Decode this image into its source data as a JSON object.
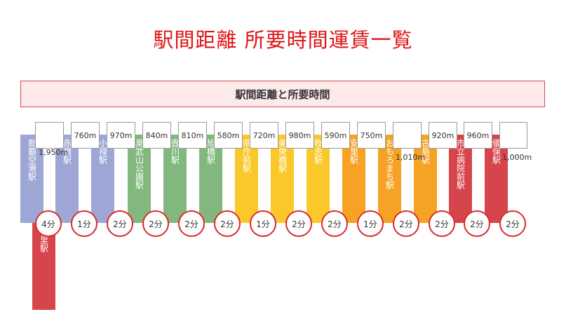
{
  "title": "駅間距離 所要時間運賃一覧",
  "section_header": "駅間距離と所要時間",
  "colors": {
    "title": "#e01616",
    "blue": "#9ea6d6",
    "green": "#82b77e",
    "yellow": "#fac82a",
    "orange": "#f6a224",
    "red": "#d7454c"
  },
  "stations": [
    {
      "name": "那覇空港駅",
      "color": "blue"
    },
    {
      "name": "赤嶺駅",
      "color": "blue"
    },
    {
      "name": "小禄駅",
      "color": "blue"
    },
    {
      "name": "奥武山公園駅",
      "color": "green"
    },
    {
      "name": "壺川駅",
      "color": "green"
    },
    {
      "name": "旭橋駅",
      "color": "green"
    },
    {
      "name": "県庁前駅",
      "color": "yellow"
    },
    {
      "name": "美栄橋駅",
      "color": "yellow"
    },
    {
      "name": "牧志駅",
      "color": "yellow"
    },
    {
      "name": "安里駅",
      "color": "orange"
    },
    {
      "name": "おもろまち駅",
      "color": "orange"
    },
    {
      "name": "古島駅",
      "color": "orange"
    },
    {
      "name": "市立病院前駅",
      "color": "red"
    },
    {
      "name": "儀保駅",
      "color": "red"
    },
    {
      "name": "首里駅",
      "color": "red"
    }
  ],
  "segments": [
    {
      "distance": "1,950m",
      "time": "4分"
    },
    {
      "distance": "760m",
      "time": "1分"
    },
    {
      "distance": "970m",
      "time": "2分"
    },
    {
      "distance": "840m",
      "time": "2分"
    },
    {
      "distance": "810m",
      "time": "2分"
    },
    {
      "distance": "580m",
      "time": "2分"
    },
    {
      "distance": "720m",
      "time": "1分"
    },
    {
      "distance": "980m",
      "time": "2分"
    },
    {
      "distance": "590m",
      "time": "2分"
    },
    {
      "distance": "750m",
      "time": "1分"
    },
    {
      "distance": "1,010m",
      "time": "2分"
    },
    {
      "distance": "920m",
      "time": "2分"
    },
    {
      "distance": "960m",
      "time": "2分"
    },
    {
      "distance": "1,000m",
      "time": "2分"
    }
  ]
}
